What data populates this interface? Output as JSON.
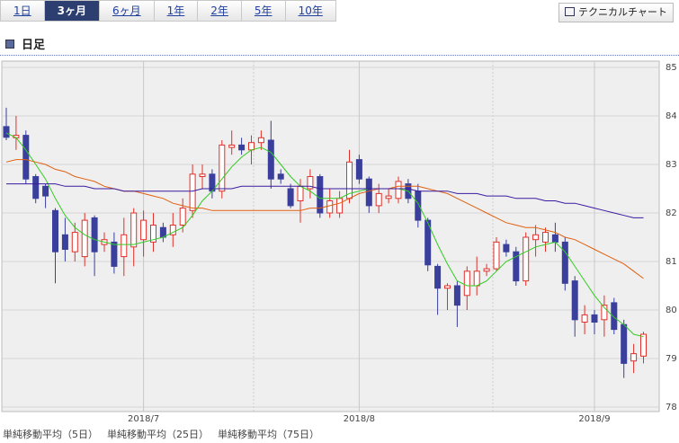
{
  "tabs": [
    "1日",
    "3ヶ月",
    "6ヶ月",
    "1年",
    "2年",
    "5年",
    "10年"
  ],
  "selected_tab": 1,
  "button": "テクニカルチャート",
  "section_title": "日足",
  "chart_data": {
    "type": "candlestick",
    "categories": [
      null,
      null,
      null,
      null,
      null,
      null,
      null,
      null,
      null,
      null,
      null,
      null,
      null,
      null,
      "2018/7",
      null,
      null,
      null,
      null,
      null,
      null,
      null,
      null,
      null,
      null,
      null,
      null,
      null,
      null,
      null,
      null,
      null,
      null,
      null,
      null,
      null,
      "2018/8",
      null,
      null,
      null,
      null,
      null,
      null,
      null,
      null,
      null,
      null,
      null,
      null,
      null,
      null,
      null,
      null,
      null,
      null,
      null,
      null,
      null,
      null,
      null,
      "2018/9",
      null,
      null,
      null,
      null,
      null
    ],
    "open": [
      83.78,
      83.55,
      83.6,
      82.75,
      82.55,
      82.05,
      81.55,
      81.2,
      81.1,
      81.9,
      81.35,
      81.4,
      81.1,
      81.3,
      81.45,
      81.4,
      81.7,
      81.55,
      81.75,
      82.05,
      82.75,
      82.8,
      82.45,
      83.35,
      83.4,
      83.3,
      83.45,
      83.5,
      82.8,
      82.5,
      82.25,
      82.5,
      82.75,
      82.0,
      82.0,
      82.3,
      83.1,
      82.7,
      82.15,
      82.3,
      82.3,
      82.6,
      82.45,
      81.85,
      80.9,
      80.45,
      80.5,
      80.3,
      80.5,
      80.8,
      80.85,
      81.35,
      81.2,
      80.6,
      81.45,
      81.4,
      81.55,
      81.4,
      80.6,
      79.75,
      79.9,
      79.8,
      80.15,
      79.7,
      78.95,
      79.05
    ],
    "high": [
      84.17,
      84.0,
      83.7,
      82.8,
      82.6,
      82.1,
      81.9,
      81.8,
      82.0,
      81.95,
      81.6,
      81.6,
      81.9,
      82.1,
      82.05,
      82.0,
      81.8,
      82.0,
      82.3,
      83.0,
      83.0,
      82.9,
      83.5,
      83.7,
      83.55,
      83.6,
      83.7,
      83.9,
      82.9,
      82.6,
      82.7,
      82.9,
      82.8,
      82.5,
      82.45,
      83.3,
      83.2,
      82.75,
      82.6,
      82.5,
      82.75,
      82.7,
      82.6,
      81.9,
      80.95,
      80.55,
      80.6,
      80.9,
      81.1,
      80.95,
      81.5,
      81.45,
      81.3,
      81.6,
      81.75,
      81.7,
      81.8,
      81.5,
      80.7,
      80.1,
      80.0,
      80.3,
      80.25,
      79.8,
      79.3,
      79.55
    ],
    "low": [
      83.5,
      83.3,
      82.6,
      82.2,
      82.1,
      80.55,
      81.0,
      81.0,
      80.9,
      80.7,
      81.2,
      80.75,
      80.7,
      80.9,
      81.1,
      81.2,
      81.4,
      81.3,
      81.6,
      81.9,
      82.5,
      82.3,
      82.3,
      83.2,
      83.2,
      83.0,
      83.3,
      82.5,
      82.6,
      82.1,
      81.8,
      82.3,
      81.9,
      81.9,
      81.9,
      82.2,
      82.6,
      82.0,
      82.0,
      82.2,
      82.2,
      82.2,
      81.7,
      80.8,
      79.9,
      80.0,
      79.65,
      80.0,
      80.3,
      80.7,
      80.8,
      81.1,
      80.5,
      80.5,
      81.1,
      81.2,
      81.2,
      80.4,
      79.45,
      79.5,
      79.5,
      79.45,
      79.5,
      78.6,
      78.7,
      78.9
    ],
    "close": [
      83.56,
      83.6,
      82.7,
      82.3,
      82.35,
      81.2,
      81.25,
      81.6,
      81.85,
      81.2,
      81.45,
      80.9,
      81.55,
      82.0,
      81.85,
      81.75,
      81.5,
      81.75,
      82.1,
      82.8,
      82.8,
      82.45,
      83.4,
      83.4,
      83.3,
      83.45,
      83.55,
      82.7,
      82.7,
      82.15,
      82.55,
      82.75,
      82.0,
      82.25,
      82.3,
      83.05,
      82.7,
      82.15,
      82.4,
      82.35,
      82.65,
      82.3,
      81.85,
      80.93,
      80.45,
      80.5,
      80.1,
      80.8,
      80.8,
      80.85,
      81.4,
      81.2,
      80.6,
      81.5,
      81.55,
      81.6,
      81.4,
      80.55,
      79.8,
      79.9,
      79.75,
      80.1,
      79.6,
      78.9,
      79.1,
      79.5
    ],
    "up_color": "#e0302a",
    "down_color": "#3a3f9c",
    "moving_averages": [
      {
        "name": "単純移動平均（5日）",
        "color": "#33cc22",
        "values": [
          83.65,
          83.55,
          83.3,
          83.0,
          82.7,
          82.3,
          81.95,
          81.7,
          81.55,
          81.45,
          81.4,
          81.35,
          81.35,
          81.35,
          81.4,
          81.45,
          81.5,
          81.6,
          81.7,
          81.95,
          82.25,
          82.45,
          82.7,
          82.95,
          83.15,
          83.3,
          83.35,
          83.25,
          83.0,
          82.75,
          82.55,
          82.45,
          82.3,
          82.3,
          82.3,
          82.4,
          82.45,
          82.5,
          82.5,
          82.5,
          82.5,
          82.45,
          82.2,
          81.8,
          81.35,
          80.95,
          80.6,
          80.5,
          80.5,
          80.6,
          80.8,
          81.0,
          81.1,
          81.2,
          81.3,
          81.35,
          81.4,
          81.2,
          80.9,
          80.6,
          80.3,
          80.05,
          79.85,
          79.7,
          79.5,
          79.45
        ]
      },
      {
        "name": "単純移動平均（25日）",
        "color": "#e06010",
        "values": [
          83.05,
          83.1,
          83.1,
          83.05,
          83.0,
          82.9,
          82.85,
          82.75,
          82.7,
          82.65,
          82.55,
          82.5,
          82.45,
          82.45,
          82.4,
          82.35,
          82.3,
          82.2,
          82.15,
          82.1,
          82.1,
          82.05,
          82.05,
          82.05,
          82.05,
          82.05,
          82.05,
          82.05,
          82.05,
          82.05,
          82.05,
          82.1,
          82.1,
          82.15,
          82.2,
          82.3,
          82.4,
          82.45,
          82.5,
          82.5,
          82.55,
          82.55,
          82.55,
          82.5,
          82.45,
          82.4,
          82.3,
          82.2,
          82.1,
          82.0,
          81.9,
          81.8,
          81.75,
          81.7,
          81.7,
          81.65,
          81.6,
          81.5,
          81.45,
          81.35,
          81.25,
          81.15,
          81.05,
          80.95,
          80.8,
          80.65
        ]
      },
      {
        "name": "単純移動平均（75日）",
        "color": "#3a1aa0",
        "values": [
          82.6,
          82.6,
          82.6,
          82.6,
          82.6,
          82.6,
          82.55,
          82.55,
          82.55,
          82.5,
          82.5,
          82.5,
          82.45,
          82.45,
          82.45,
          82.45,
          82.45,
          82.45,
          82.45,
          82.45,
          82.5,
          82.5,
          82.5,
          82.5,
          82.55,
          82.55,
          82.55,
          82.55,
          82.55,
          82.55,
          82.55,
          82.55,
          82.5,
          82.5,
          82.5,
          82.5,
          82.5,
          82.5,
          82.5,
          82.5,
          82.5,
          82.5,
          82.45,
          82.45,
          82.45,
          82.45,
          82.4,
          82.4,
          82.4,
          82.35,
          82.35,
          82.35,
          82.3,
          82.3,
          82.3,
          82.25,
          82.25,
          82.2,
          82.2,
          82.15,
          82.1,
          82.05,
          82.0,
          81.95,
          81.9,
          81.9
        ]
      }
    ],
    "ylim": [
      78,
      85
    ],
    "yticks": [
      78,
      79,
      80,
      81,
      82,
      83,
      84,
      85
    ],
    "grid": true
  }
}
